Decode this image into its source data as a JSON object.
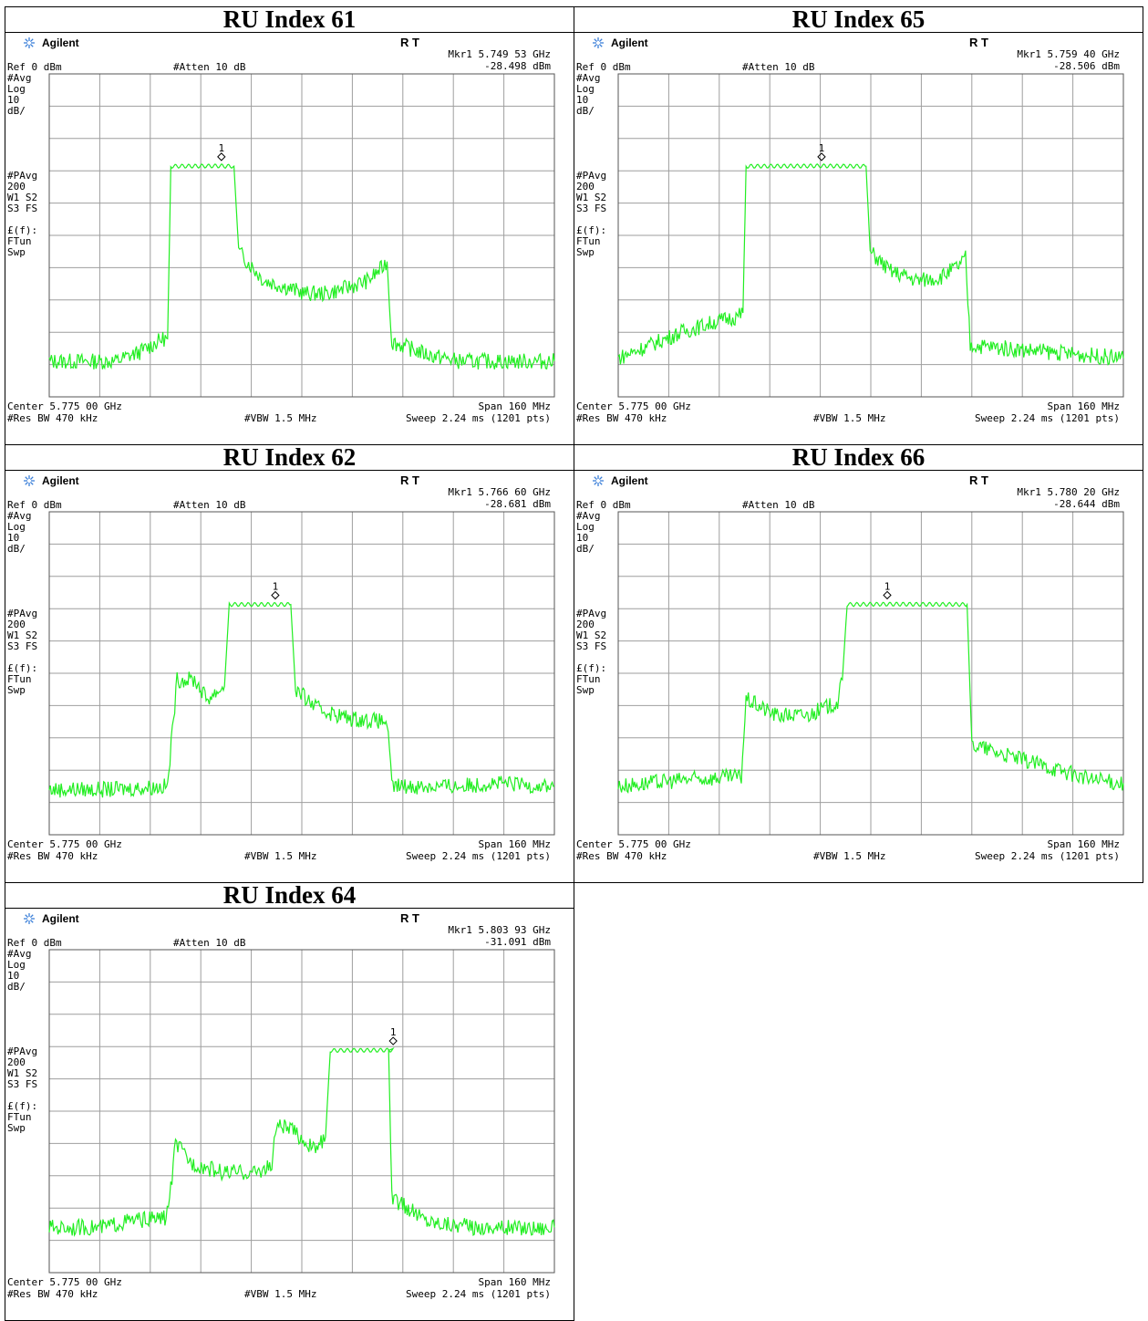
{
  "colors": {
    "trace": "#22ee22",
    "grid": "#9e9e9e",
    "logo": "#3b7fd9"
  },
  "panels": [
    {
      "title": "RU Index 61",
      "brand": "Agilent",
      "rt": "R  T",
      "marker_freq": "Mkr1  5.749 53 GHz",
      "marker_level": "-28.498 dBm",
      "ref": "Ref 0 dBm",
      "atten": "#Atten 10 dB",
      "left_labels": [
        "#Avg",
        "Log",
        "10",
        "dB/",
        "#PAvg",
        "200",
        "W1  S2",
        "S3  FS",
        "£(f):",
        "FTun",
        "Swp"
      ],
      "center": "Center 5.775 00 GHz",
      "span": "Span 160 MHz",
      "rbw": "#Res BW 470 kHz",
      "vbw": "#VBW 1.5 MHz",
      "sweep": "Sweep 2.24 ms (1201 pts)",
      "chart_data": {
        "type": "line",
        "x_range_GHz": [
          5.695,
          5.855
        ],
        "y_range_dBm": [
          -100,
          0
        ],
        "marker": {
          "x": 5.74953,
          "y": -28.498
        },
        "trace": [
          [
            5.695,
            -89
          ],
          [
            5.716,
            -89
          ],
          [
            5.724,
            -86
          ],
          [
            5.731,
            -82
          ],
          [
            5.7325,
            -82
          ],
          [
            5.7335,
            -28.6
          ],
          [
            5.7495,
            -28.5
          ],
          [
            5.7505,
            -28.6
          ],
          [
            5.7535,
            -28.6
          ],
          [
            5.755,
            -55
          ],
          [
            5.763,
            -64
          ],
          [
            5.77,
            -66
          ],
          [
            5.776,
            -68
          ],
          [
            5.783,
            -68
          ],
          [
            5.79,
            -66
          ],
          [
            5.796,
            -64
          ],
          [
            5.8005,
            -60
          ],
          [
            5.802,
            -58
          ],
          [
            5.8035,
            -83
          ],
          [
            5.815,
            -87
          ],
          [
            5.825,
            -89
          ],
          [
            5.855,
            -89
          ]
        ]
      }
    },
    {
      "title": "RU Index 65",
      "brand": "Agilent",
      "rt": "R  T",
      "marker_freq": "Mkr1  5.759 40 GHz",
      "marker_level": "-28.506 dBm",
      "ref": "Ref 0 dBm",
      "atten": "#Atten 10 dB",
      "left_labels": [
        "#Avg",
        "Log",
        "10",
        "dB/",
        "#PAvg",
        "200",
        "W1  S2",
        "S3  FS",
        "£(f):",
        "FTun",
        "Swp"
      ],
      "center": "Center 5.775 00 GHz",
      "span": "Span 160 MHz",
      "rbw": "#Res BW 470 kHz",
      "vbw": "#VBW 1.5 MHz",
      "sweep": "Sweep 2.24 ms (1201 pts)",
      "chart_data": {
        "type": "line",
        "x_range_GHz": [
          5.695,
          5.855
        ],
        "y_range_dBm": [
          -100,
          0
        ],
        "marker": {
          "x": 5.7594,
          "y": -28.506
        },
        "trace": [
          [
            5.695,
            -88
          ],
          [
            5.705,
            -84
          ],
          [
            5.715,
            -80
          ],
          [
            5.725,
            -77
          ],
          [
            5.733,
            -75
          ],
          [
            5.7345,
            -74
          ],
          [
            5.7355,
            -28.6
          ],
          [
            5.7594,
            -28.5
          ],
          [
            5.7735,
            -28.6
          ],
          [
            5.7748,
            -55
          ],
          [
            5.781,
            -61
          ],
          [
            5.79,
            -64
          ],
          [
            5.797,
            -63
          ],
          [
            5.8035,
            -59
          ],
          [
            5.805,
            -57
          ],
          [
            5.8065,
            -84
          ],
          [
            5.83,
            -86
          ],
          [
            5.855,
            -88
          ]
        ]
      }
    },
    {
      "title": "RU Index 62",
      "brand": "Agilent",
      "rt": "R  T",
      "marker_freq": "Mkr1  5.766 60 GHz",
      "marker_level": "-28.681 dBm",
      "ref": "Ref 0 dBm",
      "atten": "#Atten 10 dB",
      "left_labels": [
        "#Avg",
        "Log",
        "10",
        "dB/",
        "#PAvg",
        "200",
        "W1  S2",
        "S3  FS",
        "£(f):",
        "FTun",
        "Swp"
      ],
      "center": "Center 5.775 00 GHz",
      "span": "Span 160 MHz",
      "rbw": "#Res BW 470 kHz",
      "vbw": "#VBW 1.5 MHz",
      "sweep": "Sweep 2.24 ms (1201 pts)",
      "chart_data": {
        "type": "line",
        "x_range_GHz": [
          5.695,
          5.855
        ],
        "y_range_dBm": [
          -100,
          0
        ],
        "marker": {
          "x": 5.7666,
          "y": -28.681
        },
        "trace": [
          [
            5.695,
            -86
          ],
          [
            5.715,
            -86
          ],
          [
            5.7325,
            -85
          ],
          [
            5.734,
            -68
          ],
          [
            5.7355,
            -52
          ],
          [
            5.741,
            -52
          ],
          [
            5.745,
            -58
          ],
          [
            5.7505,
            -54
          ],
          [
            5.752,
            -28.7
          ],
          [
            5.7666,
            -28.7
          ],
          [
            5.7715,
            -28.7
          ],
          [
            5.773,
            -55
          ],
          [
            5.78,
            -61
          ],
          [
            5.79,
            -64
          ],
          [
            5.802,
            -65
          ],
          [
            5.8035,
            -85
          ],
          [
            5.825,
            -85
          ],
          [
            5.835,
            -84
          ],
          [
            5.855,
            -85
          ]
        ]
      }
    },
    {
      "title": "RU Index 66",
      "brand": "Agilent",
      "rt": "R  T",
      "marker_freq": "Mkr1  5.780 20 GHz",
      "marker_level": "-28.644 dBm",
      "ref": "Ref 0 dBm",
      "atten": "#Atten 10 dB",
      "left_labels": [
        "#Avg",
        "Log",
        "10",
        "dB/",
        "#PAvg",
        "200",
        "W1  S2",
        "S3  FS",
        "£(f):",
        "FTun",
        "Swp"
      ],
      "center": "Center 5.775 00 GHz",
      "span": "Span 160 MHz",
      "rbw": "#Res BW 470 kHz",
      "vbw": "#VBW 1.5 MHz",
      "sweep": "Sweep 2.24 ms (1201 pts)",
      "chart_data": {
        "type": "line",
        "x_range_GHz": [
          5.695,
          5.855
        ],
        "y_range_dBm": [
          -100,
          0
        ],
        "marker": {
          "x": 5.7802,
          "y": -28.644
        },
        "trace": [
          [
            5.695,
            -85
          ],
          [
            5.715,
            -83
          ],
          [
            5.734,
            -82
          ],
          [
            5.7355,
            -58
          ],
          [
            5.745,
            -63
          ],
          [
            5.755,
            -63
          ],
          [
            5.7645,
            -59
          ],
          [
            5.766,
            -52
          ],
          [
            5.7675,
            -28.7
          ],
          [
            5.7802,
            -28.6
          ],
          [
            5.8055,
            -28.7
          ],
          [
            5.807,
            -72
          ],
          [
            5.82,
            -76
          ],
          [
            5.835,
            -80
          ],
          [
            5.845,
            -83
          ],
          [
            5.855,
            -84
          ]
        ]
      }
    },
    {
      "title": "RU Index 64",
      "brand": "Agilent",
      "rt": "R  T",
      "marker_freq": "Mkr1  5.803 93 GHz",
      "marker_level": "-31.091 dBm",
      "ref": "Ref 0 dBm",
      "atten": "#Atten 10 dB",
      "left_labels": [
        "#Avg",
        "Log",
        "10",
        "dB/",
        "#PAvg",
        "200",
        "W1  S2",
        "S3  FS",
        "£(f):",
        "FTun",
        "Swp"
      ],
      "center": "Center 5.775 00 GHz",
      "span": "Span 160 MHz",
      "rbw": "#Res BW 470 kHz",
      "vbw": "#VBW 1.5 MHz",
      "sweep": "Sweep 2.24 ms (1201 pts)",
      "chart_data": {
        "type": "line",
        "x_range_GHz": [
          5.695,
          5.855
        ],
        "y_range_dBm": [
          -100,
          0
        ],
        "marker": {
          "x": 5.80393,
          "y": -31.091
        },
        "trace": [
          [
            5.695,
            -86
          ],
          [
            5.712,
            -86
          ],
          [
            5.72,
            -84
          ],
          [
            5.732,
            -83
          ],
          [
            5.7335,
            -74
          ],
          [
            5.735,
            -60
          ],
          [
            5.74,
            -66
          ],
          [
            5.75,
            -69
          ],
          [
            5.76,
            -69
          ],
          [
            5.7655,
            -67
          ],
          [
            5.767,
            -54
          ],
          [
            5.772,
            -56
          ],
          [
            5.779,
            -62
          ],
          [
            5.7825,
            -58
          ],
          [
            5.784,
            -31.2
          ],
          [
            5.8039,
            -31.1
          ],
          [
            5.8025,
            -31.2
          ],
          [
            5.8035,
            -77
          ],
          [
            5.815,
            -84
          ],
          [
            5.83,
            -86
          ],
          [
            5.855,
            -86
          ]
        ]
      }
    }
  ]
}
